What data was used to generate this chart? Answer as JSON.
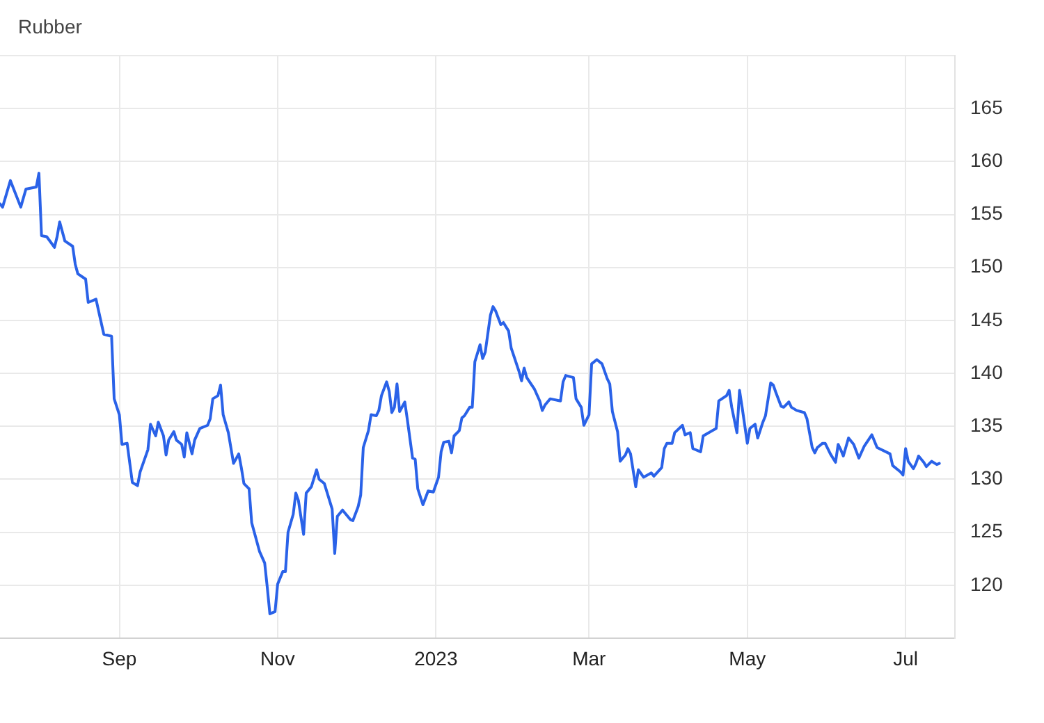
{
  "chart_data": {
    "type": "line",
    "title": "Rubber",
    "color": "#2a62e8",
    "x": [
      "2022-07-17",
      "2022-07-18",
      "2022-07-21",
      "2022-07-25",
      "2022-07-27",
      "2022-07-31",
      "2022-08-01",
      "2022-08-02",
      "2022-08-04",
      "2022-08-07",
      "2022-08-08",
      "2022-08-09",
      "2022-08-11",
      "2022-08-14",
      "2022-08-15",
      "2022-08-16",
      "2022-08-19",
      "2022-08-20",
      "2022-08-23",
      "2022-08-24",
      "2022-08-26",
      "2022-08-29",
      "2022-08-30",
      "2022-09-01",
      "2022-09-02",
      "2022-09-04",
      "2022-09-06",
      "2022-09-08",
      "2022-09-09",
      "2022-09-12",
      "2022-09-13",
      "2022-09-15",
      "2022-09-16",
      "2022-09-18",
      "2022-09-19",
      "2022-09-20",
      "2022-09-22",
      "2022-09-23",
      "2022-09-25",
      "2022-09-26",
      "2022-09-27",
      "2022-09-29",
      "2022-09-30",
      "2022-10-02",
      "2022-10-05",
      "2022-10-06",
      "2022-10-07",
      "2022-10-09",
      "2022-10-10",
      "2022-10-11",
      "2022-10-13",
      "2022-10-15",
      "2022-10-17",
      "2022-10-18",
      "2022-10-19",
      "2022-10-21",
      "2022-10-22",
      "2022-10-25",
      "2022-10-27",
      "2022-10-28",
      "2022-10-29",
      "2022-10-31",
      "2022-11-01",
      "2022-11-03",
      "2022-11-04",
      "2022-11-05",
      "2022-11-07",
      "2022-11-08",
      "2022-11-09",
      "2022-11-11",
      "2022-11-12",
      "2022-11-14",
      "2022-11-16",
      "2022-11-17",
      "2022-11-19",
      "2022-11-22",
      "2022-11-23",
      "2022-11-24",
      "2022-11-26",
      "2022-11-29",
      "2022-11-30",
      "2022-12-02",
      "2022-12-03",
      "2022-12-04",
      "2022-12-06",
      "2022-12-07",
      "2022-12-09",
      "2022-12-10",
      "2022-12-11",
      "2022-12-13",
      "2022-12-14",
      "2022-12-15",
      "2022-12-16",
      "2022-12-17",
      "2022-12-18",
      "2022-12-20",
      "2022-12-21",
      "2022-12-23",
      "2022-12-24",
      "2022-12-25",
      "2022-12-27",
      "2022-12-29",
      "2022-12-31",
      "2023-01-02",
      "2023-01-03",
      "2023-01-04",
      "2023-01-06",
      "2023-01-07",
      "2023-01-08",
      "2023-01-10",
      "2023-01-11",
      "2023-01-12",
      "2023-01-14",
      "2023-01-15",
      "2023-01-16",
      "2023-01-18",
      "2023-01-19",
      "2023-01-20",
      "2023-01-22",
      "2023-01-23",
      "2023-01-24",
      "2023-01-26",
      "2023-01-27",
      "2023-01-29",
      "2023-01-30",
      "2023-02-02",
      "2023-02-03",
      "2023-02-04",
      "2023-02-05",
      "2023-02-08",
      "2023-02-10",
      "2023-02-11",
      "2023-02-12",
      "2023-02-14",
      "2023-02-18",
      "2023-02-19",
      "2023-02-20",
      "2023-02-23",
      "2023-02-24",
      "2023-02-26",
      "2023-02-27",
      "2023-03-01",
      "2023-03-02",
      "2023-03-04",
      "2023-03-06",
      "2023-03-08",
      "2023-03-09",
      "2023-03-10",
      "2023-03-12",
      "2023-03-13",
      "2023-03-15",
      "2023-03-16",
      "2023-03-17",
      "2023-03-19",
      "2023-03-20",
      "2023-03-22",
      "2023-03-25",
      "2023-03-26",
      "2023-03-29",
      "2023-03-30",
      "2023-03-31",
      "2023-04-02",
      "2023-04-03",
      "2023-04-06",
      "2023-04-07",
      "2023-04-09",
      "2023-04-10",
      "2023-04-13",
      "2023-04-14",
      "2023-04-19",
      "2023-04-20",
      "2023-04-23",
      "2023-04-24",
      "2023-04-25",
      "2023-04-27",
      "2023-04-28",
      "2023-04-29",
      "2023-05-01",
      "2023-05-02",
      "2023-05-04",
      "2023-05-05",
      "2023-05-07",
      "2023-05-08",
      "2023-05-10",
      "2023-05-11",
      "2023-05-12",
      "2023-05-14",
      "2023-05-15",
      "2023-05-17",
      "2023-05-18",
      "2023-05-20",
      "2023-05-23",
      "2023-05-24",
      "2023-05-26",
      "2023-05-27",
      "2023-05-28",
      "2023-05-30",
      "2023-05-31",
      "2023-06-02",
      "2023-06-04",
      "2023-06-05",
      "2023-06-06",
      "2023-06-07",
      "2023-06-09",
      "2023-06-11",
      "2023-06-13",
      "2023-06-15",
      "2023-06-18",
      "2023-06-20",
      "2023-06-25",
      "2023-06-26",
      "2023-06-29",
      "2023-06-30",
      "2023-07-01",
      "2023-07-02",
      "2023-07-04",
      "2023-07-05",
      "2023-07-06",
      "2023-07-08",
      "2023-07-09",
      "2023-07-11",
      "2023-07-13",
      "2023-07-14"
    ],
    "values": [
      156.0,
      155.7,
      158.2,
      155.7,
      157.4,
      157.6,
      158.9,
      153.0,
      152.9,
      151.9,
      152.9,
      154.3,
      152.5,
      152.0,
      150.3,
      149.4,
      148.9,
      146.7,
      147.0,
      145.9,
      143.7,
      143.5,
      137.6,
      136.1,
      133.3,
      133.4,
      129.7,
      129.4,
      130.7,
      132.8,
      135.2,
      134.1,
      135.4,
      134.1,
      132.3,
      133.7,
      134.5,
      133.7,
      133.3,
      132.1,
      134.4,
      132.4,
      133.7,
      134.8,
      135.1,
      135.7,
      137.6,
      137.9,
      138.9,
      136.1,
      134.4,
      131.5,
      132.4,
      131.1,
      129.6,
      129.1,
      125.9,
      123.2,
      122.1,
      119.8,
      117.3,
      117.5,
      120.1,
      121.3,
      121.3,
      125.0,
      126.7,
      128.7,
      128.0,
      124.8,
      128.7,
      129.3,
      130.9,
      130.0,
      129.6,
      127.2,
      123.0,
      126.5,
      127.1,
      126.2,
      126.1,
      127.4,
      128.5,
      133.0,
      134.6,
      136.1,
      136.0,
      136.5,
      137.9,
      139.2,
      138.3,
      136.3,
      136.8,
      139.0,
      136.4,
      137.3,
      135.6,
      132.0,
      131.9,
      129.1,
      127.6,
      128.9,
      128.8,
      130.2,
      132.6,
      133.5,
      133.6,
      132.5,
      134.1,
      134.6,
      135.8,
      136.0,
      136.8,
      136.8,
      141.1,
      142.7,
      141.4,
      142.0,
      145.5,
      146.3,
      145.9,
      144.6,
      144.8,
      144.0,
      142.4,
      140.2,
      139.3,
      140.5,
      139.6,
      138.5,
      137.4,
      136.5,
      137.0,
      137.6,
      137.4,
      139.2,
      139.8,
      139.6,
      137.6,
      136.8,
      135.1,
      136.1,
      140.9,
      141.3,
      140.9,
      139.5,
      139.0,
      136.4,
      134.5,
      131.7,
      132.3,
      132.9,
      132.4,
      129.3,
      130.9,
      130.2,
      130.6,
      130.3,
      131.1,
      132.9,
      133.4,
      133.4,
      134.4,
      135.1,
      134.2,
      134.4,
      132.9,
      132.6,
      134.1,
      134.8,
      137.4,
      137.9,
      138.4,
      136.8,
      134.4,
      138.4,
      136.8,
      133.4,
      134.8,
      135.2,
      133.9,
      135.4,
      136.0,
      139.1,
      138.9,
      138.2,
      136.9,
      136.8,
      137.3,
      136.8,
      136.5,
      136.3,
      135.7,
      133.0,
      132.5,
      133.0,
      133.4,
      133.4,
      132.4,
      131.6,
      133.3,
      132.8,
      132.2,
      133.9,
      133.3,
      132.0,
      133.1,
      134.2,
      133.0,
      132.4,
      131.3,
      130.7,
      130.4,
      132.9,
      131.7,
      131.0,
      131.5,
      132.2,
      131.6,
      131.2,
      131.7,
      131.4,
      131.5
    ],
    "xlim": [
      "2022-07-17",
      "2023-07-20"
    ],
    "xticks": [
      {
        "value": "2022-09-01",
        "label": "Sep"
      },
      {
        "value": "2022-11-01",
        "label": "Nov"
      },
      {
        "value": "2023-01-01",
        "label": "2023"
      },
      {
        "value": "2023-03-01",
        "label": "Mar"
      },
      {
        "value": "2023-05-01",
        "label": "May"
      },
      {
        "value": "2023-07-01",
        "label": "Jul"
      }
    ],
    "ylim": [
      115,
      170
    ],
    "yticks": [
      120,
      125,
      130,
      135,
      140,
      145,
      150,
      155,
      160,
      165,
      {
        "value": 170,
        "label": null
      }
    ],
    "grid": true
  }
}
